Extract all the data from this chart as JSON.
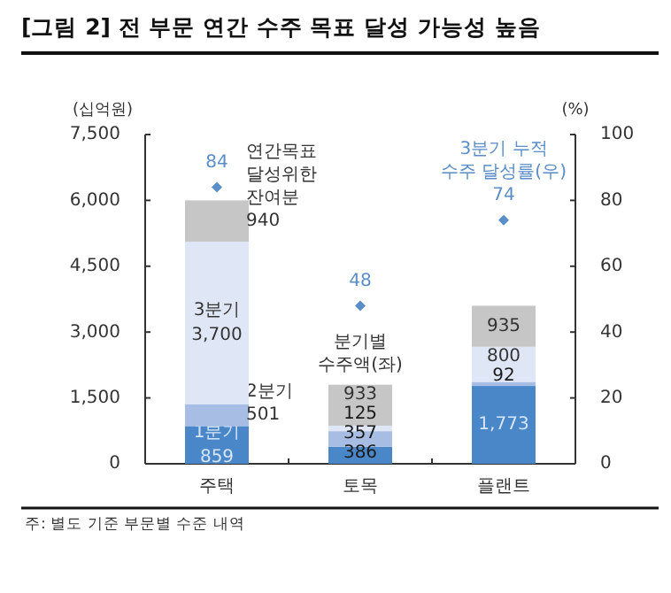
{
  "chart_data": {
    "type": "bar",
    "stacked": true,
    "title": "[그림 2] 전 부문 연간 수주 목표 달성 가능성 높음",
    "ylabel": "(십억원)",
    "y2label": "(%)",
    "categories": [
      "주택",
      "토목",
      "플랜트"
    ],
    "series": [
      {
        "name": "1분기",
        "color": "#4a87c9",
        "values": [
          859,
          386,
          1773
        ],
        "value_labels": [
          "859",
          "386",
          "1,773"
        ]
      },
      {
        "name": "2분기",
        "color": "#a8bde3",
        "values": [
          501,
          357,
          92
        ],
        "value_labels": [
          "501",
          "357",
          "92"
        ]
      },
      {
        "name": "3분기",
        "color": "#dfe7f6",
        "values": [
          3700,
          125,
          800
        ],
        "value_labels": [
          "3,700",
          "125",
          "800"
        ]
      },
      {
        "name": "연간목표 달성위한 잔여분",
        "color": "#c6c6c6",
        "values": [
          940,
          933,
          935
        ],
        "value_labels": [
          "940",
          "933",
          "935"
        ]
      },
      {
        "name": "3분기 누적 수주 달성률(우)",
        "type": "scatter",
        "axis": "y2",
        "marker": "diamond",
        "color": "#5a8ec8",
        "values": [
          84,
          48,
          74
        ],
        "value_labels": [
          "84",
          "48",
          "74"
        ]
      }
    ],
    "ylim": [
      0,
      7500
    ],
    "yticks": [
      0,
      {
        "value": 1500,
        "label": "1,500"
      },
      {
        "value": 3000,
        "label": "3,000"
      },
      {
        "value": 4500,
        "label": "4,500"
      },
      {
        "value": 6000,
        "label": "6,000"
      },
      {
        "value": 7500,
        "label": "7,500"
      }
    ],
    "y2lim": [
      0,
      100
    ],
    "y2ticks": [
      0,
      20,
      40,
      60,
      80,
      100
    ],
    "annotations": [
      "분기별 수주액(좌)",
      "주: 별도 기준 부문별 수준 내역"
    ]
  }
}
